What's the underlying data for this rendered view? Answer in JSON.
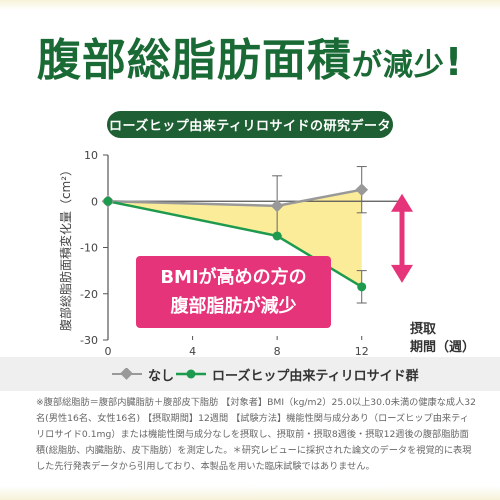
{
  "headline": {
    "part1": "腹部総脂肪面積",
    "part2": "が減少",
    "part3": "!"
  },
  "subtitle": "ローズヒップ由来ティリロサイドの研究データ",
  "callout": {
    "line1": "BMIが高めの方の",
    "line2": "腹部脂肪が減少"
  },
  "colors": {
    "green": "#1e9a4f",
    "gray": "#999999",
    "fill": "#fbea8f",
    "accent": "#e6347a"
  },
  "chart_data": {
    "type": "line",
    "ylabel": "腹部総脂肪面積変化量（cm²）",
    "xlabel_line1": "摂取",
    "xlabel_line2": "期間（週）",
    "xticks": [
      "0",
      "4",
      "8",
      "12"
    ],
    "yticks": [
      "10",
      "0",
      "-10",
      "-20",
      "-30"
    ],
    "x": [
      0,
      8,
      12
    ],
    "xlim": [
      0,
      14
    ],
    "ylim": [
      -30,
      10
    ],
    "series": [
      {
        "name": "なし",
        "values": [
          0,
          -1,
          2.5
        ],
        "error": [
          0,
          6.5,
          5
        ],
        "color": "#999999"
      },
      {
        "name": "ローズヒップ由来ティリロサイド群",
        "values": [
          0,
          -7.5,
          -18.5
        ],
        "error": [
          0,
          0,
          3.5
        ],
        "color": "#1e9a4f"
      }
    ],
    "legend_position": "bottom",
    "grid": false
  },
  "legend": {
    "item1": "なし",
    "item2": "ローズヒップ由来ティリロサイド群"
  },
  "footnote": "※腹部総脂肪＝腹部内臓脂肪＋腹部皮下脂肪 【対象者】BMI（kg/m2）25.0以上30.0未満の健康な成人32名(男性16名、女性16名) 【摂取期間】12週間 【試験方法】機能性関与成分あり（ローズヒップ由来ティリロサイド0.1mg）または機能性関与成分なしを摂取し、摂取前・摂取8週後・摂取12週後の腹部脂肪面積(総脂肪、内臓脂肪、皮下脂肪）を測定した。＊研究レビューに採択された論文のデータを視覚的に表現した先行発表データから引用しており、本製品を用いた臨床試験ではありません。"
}
